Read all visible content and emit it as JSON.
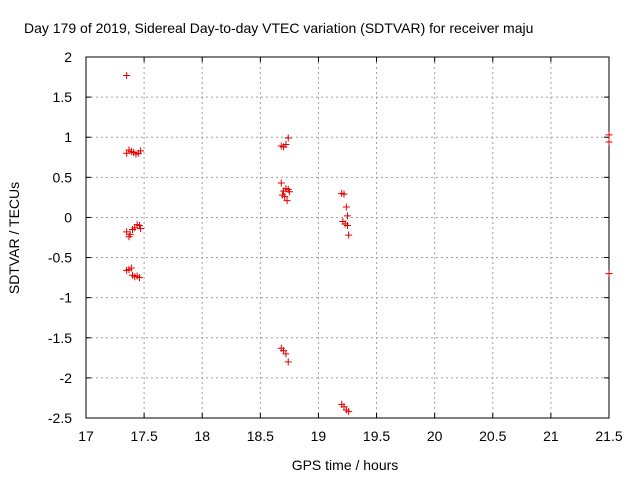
{
  "chart_data": {
    "type": "scatter",
    "title": "Day 179 of 2019, Sidereal Day-to-day VTEC variation (SDTVAR) for receiver maju",
    "xlabel": "GPS time / hours",
    "ylabel": "SDTVAR / TECUs",
    "xlim": [
      17,
      21.5
    ],
    "ylim": [
      -2.5,
      2
    ],
    "x_ticks": [
      17,
      17.5,
      18,
      18.5,
      19,
      19.5,
      20,
      20.5,
      21,
      21.5
    ],
    "y_ticks": [
      -2.5,
      -2,
      -1.5,
      -1,
      -0.5,
      0,
      0.5,
      1,
      1.5,
      2
    ],
    "x_tick_labels": [
      "17",
      "17.5",
      "18",
      "18.5",
      "19",
      "19.5",
      "20",
      "20.5",
      "21",
      "21.5"
    ],
    "y_tick_labels": [
      "-2.5",
      "-2",
      "-1.5",
      "-1",
      "-0.5",
      "0",
      "0.5",
      "1",
      "1.5",
      "2"
    ],
    "grid": true,
    "marker": "+",
    "color": "#e00000",
    "series": [
      {
        "name": "SDTVAR",
        "points": [
          [
            17.35,
            1.77
          ],
          [
            17.35,
            0.8
          ],
          [
            17.37,
            0.84
          ],
          [
            17.39,
            0.82
          ],
          [
            17.41,
            0.81
          ],
          [
            17.43,
            0.79
          ],
          [
            17.45,
            0.8
          ],
          [
            17.47,
            0.83
          ],
          [
            17.35,
            -0.18
          ],
          [
            17.37,
            -0.24
          ],
          [
            17.38,
            -0.21
          ],
          [
            17.4,
            -0.15
          ],
          [
            17.42,
            -0.13
          ],
          [
            17.44,
            -0.09
          ],
          [
            17.46,
            -0.1
          ],
          [
            17.47,
            -0.14
          ],
          [
            17.35,
            -0.66
          ],
          [
            17.37,
            -0.65
          ],
          [
            17.39,
            -0.63
          ],
          [
            17.4,
            -0.72
          ],
          [
            17.42,
            -0.74
          ],
          [
            17.44,
            -0.73
          ],
          [
            17.46,
            -0.75
          ],
          [
            18.68,
            0.43
          ],
          [
            18.69,
            0.28
          ],
          [
            18.7,
            0.33
          ],
          [
            18.71,
            0.26
          ],
          [
            18.72,
            0.36
          ],
          [
            18.73,
            0.21
          ],
          [
            18.74,
            0.35
          ],
          [
            18.75,
            0.32
          ],
          [
            18.68,
            0.89
          ],
          [
            18.7,
            0.88
          ],
          [
            18.72,
            0.91
          ],
          [
            18.74,
            0.99
          ],
          [
            18.68,
            -1.63
          ],
          [
            18.7,
            -1.66
          ],
          [
            18.72,
            -1.7
          ],
          [
            18.74,
            -1.8
          ],
          [
            19.2,
            0.3
          ],
          [
            19.22,
            0.29
          ],
          [
            19.24,
            0.13
          ],
          [
            19.25,
            0.02
          ],
          [
            19.21,
            -0.05
          ],
          [
            19.23,
            -0.08
          ],
          [
            19.25,
            -0.1
          ],
          [
            19.26,
            -0.22
          ],
          [
            19.2,
            -2.33
          ],
          [
            19.22,
            -2.36
          ],
          [
            19.24,
            -2.4
          ],
          [
            19.26,
            -2.42
          ],
          [
            21.5,
            1.03
          ],
          [
            21.5,
            0.94
          ],
          [
            21.5,
            -0.7
          ]
        ]
      }
    ]
  }
}
